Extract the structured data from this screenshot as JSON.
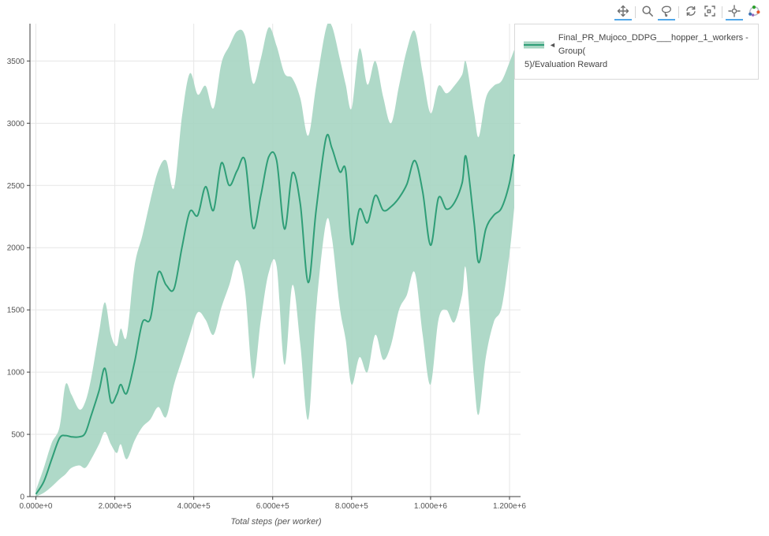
{
  "modebar": {
    "buttons": [
      {
        "icon": "pan-icon",
        "active": true
      },
      {
        "icon": "zoom-icon",
        "active": false
      },
      {
        "icon": "lasso-select-icon",
        "active": true
      },
      {
        "icon": "autoscale-icon",
        "active": false
      },
      {
        "icon": "reset-axes-icon",
        "active": false
      },
      {
        "icon": "spikelines-icon",
        "active": true
      },
      {
        "icon": "plotly-logo-icon",
        "active": false
      }
    ]
  },
  "legend": {
    "marker": "◄",
    "line1": "Final_PR_Mujoco_DDPG___hopper_1_workers - Group(",
    "line2": "5)/Evaluation Reward"
  },
  "chart_data": {
    "type": "line",
    "title": "",
    "xlabel": "Total steps (per worker)",
    "ylabel": "",
    "xlim": [
      -15000,
      1228000
    ],
    "ylim": [
      0,
      3800
    ],
    "grid": true,
    "legend_position": "top-right",
    "x_ticks": [
      {
        "v": 0,
        "label": "0.000e+0"
      },
      {
        "v": 200000,
        "label": "2.000e+5"
      },
      {
        "v": 400000,
        "label": "4.000e+5"
      },
      {
        "v": 600000,
        "label": "6.000e+5"
      },
      {
        "v": 800000,
        "label": "8.000e+5"
      },
      {
        "v": 1000000,
        "label": "1.000e+6"
      },
      {
        "v": 1200000,
        "label": "1.200e+6"
      }
    ],
    "y_ticks": [
      {
        "v": 0,
        "label": "0"
      },
      {
        "v": 500,
        "label": "500"
      },
      {
        "v": 1000,
        "label": "1000"
      },
      {
        "v": 1500,
        "label": "1500"
      },
      {
        "v": 2000,
        "label": "2000"
      },
      {
        "v": 2500,
        "label": "2500"
      },
      {
        "v": 3000,
        "label": "3000"
      },
      {
        "v": 3500,
        "label": "3500"
      }
    ],
    "colors": {
      "line": "#2f9e77",
      "band": "#a6d5c2",
      "grid": "#e6e6e6",
      "axis": "#3d3d3d",
      "tick_text": "#545454"
    },
    "series": [
      {
        "name": "Final_PR_Mujoco_DDPG___hopper_1_workers - Group(5)/Evaluation Reward",
        "x": [
          0,
          20000,
          40000,
          60000,
          75000,
          90000,
          110000,
          125000,
          140000,
          160000,
          175000,
          190000,
          205000,
          215000,
          230000,
          250000,
          270000,
          290000,
          310000,
          330000,
          350000,
          370000,
          390000,
          410000,
          430000,
          450000,
          470000,
          490000,
          510000,
          530000,
          550000,
          570000,
          590000,
          610000,
          630000,
          650000,
          670000,
          690000,
          710000,
          735000,
          750000,
          770000,
          785000,
          800000,
          820000,
          840000,
          860000,
          880000,
          900000,
          920000,
          940000,
          960000,
          980000,
          1000000,
          1020000,
          1040000,
          1060000,
          1080000,
          1090000,
          1110000,
          1122000,
          1140000,
          1160000,
          1180000,
          1200000,
          1212000
        ],
        "mean": [
          20,
          120,
          300,
          470,
          490,
          480,
          480,
          510,
          650,
          850,
          1030,
          760,
          820,
          900,
          830,
          1080,
          1400,
          1430,
          1800,
          1700,
          1670,
          2000,
          2290,
          2260,
          2490,
          2300,
          2680,
          2500,
          2620,
          2700,
          2160,
          2420,
          2730,
          2700,
          2150,
          2600,
          2350,
          1720,
          2300,
          2880,
          2800,
          2610,
          2620,
          2030,
          2310,
          2200,
          2420,
          2300,
          2330,
          2400,
          2510,
          2700,
          2450,
          2020,
          2400,
          2310,
          2360,
          2520,
          2730,
          2210,
          1880,
          2150,
          2260,
          2320,
          2520,
          2750
        ],
        "lower": [
          0,
          30,
          80,
          140,
          180,
          230,
          250,
          230,
          300,
          420,
          520,
          420,
          350,
          420,
          300,
          450,
          560,
          620,
          720,
          640,
          900,
          1100,
          1300,
          1480,
          1420,
          1300,
          1520,
          1700,
          1900,
          1650,
          950,
          1420,
          1800,
          1850,
          1060,
          1700,
          1220,
          620,
          1500,
          2200,
          2080,
          1520,
          1260,
          900,
          1120,
          1000,
          1300,
          1100,
          1220,
          1500,
          1620,
          1800,
          1300,
          900,
          1420,
          1500,
          1400,
          1620,
          1820,
          950,
          660,
          1120,
          1400,
          1520,
          1950,
          2320
        ],
        "upper": [
          50,
          230,
          430,
          560,
          900,
          820,
          700,
          760,
          950,
          1320,
          1560,
          1300,
          1210,
          1350,
          1290,
          1850,
          2100,
          2380,
          2620,
          2700,
          2480,
          3050,
          3400,
          3230,
          3300,
          3120,
          3480,
          3620,
          3740,
          3700,
          3320,
          3520,
          3770,
          3620,
          3400,
          3360,
          3200,
          2900,
          3300,
          3760,
          3780,
          3520,
          3310,
          3120,
          3600,
          3310,
          3500,
          3210,
          3000,
          3300,
          3590,
          3740,
          3400,
          3080,
          3300,
          3240,
          3300,
          3390,
          3490,
          3090,
          2890,
          3200,
          3300,
          3340,
          3490,
          3590
        ]
      }
    ]
  }
}
